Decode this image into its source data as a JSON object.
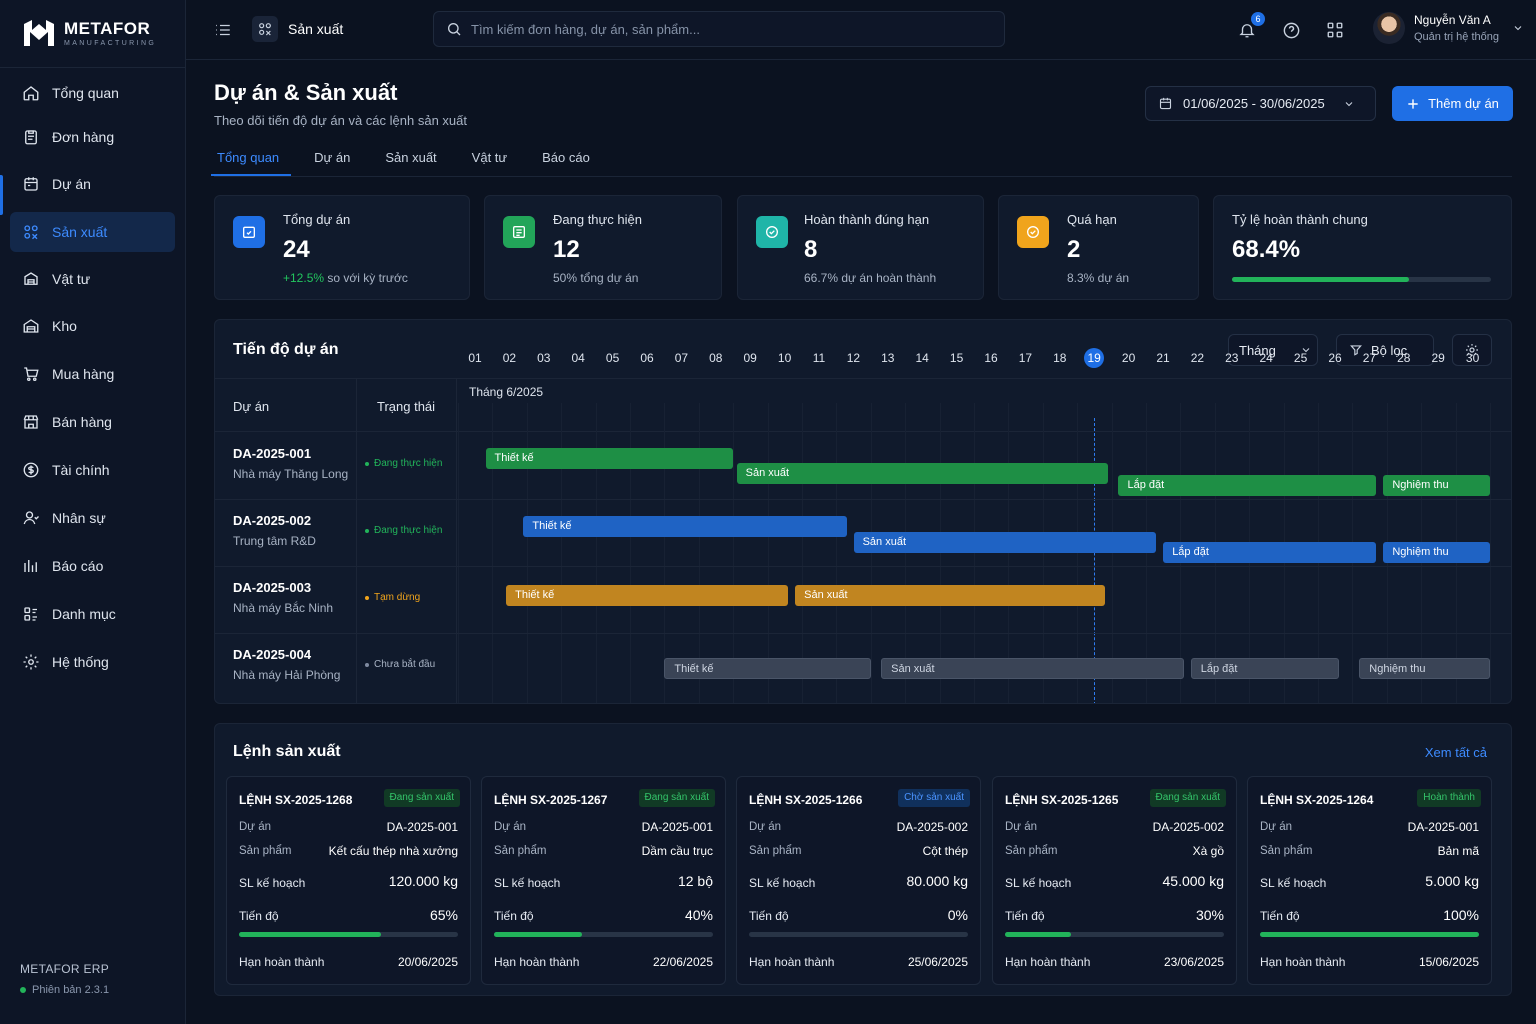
{
  "brand": {
    "name": "METAFOR",
    "tagline": "MANUFACTURING"
  },
  "sidebar": {
    "items": [
      {
        "label": "Tổng quan",
        "icon": "home-icon"
      },
      {
        "label": "Đơn hàng",
        "icon": "clipboard-icon"
      },
      {
        "label": "Dự án",
        "icon": "calendar-icon"
      },
      {
        "label": "Sản xuất",
        "icon": "factory-icon",
        "active": true
      },
      {
        "label": "Vật tư",
        "icon": "box-icon"
      },
      {
        "label": "Kho",
        "icon": "warehouse-icon"
      },
      {
        "label": "Mua hàng",
        "icon": "cart-icon"
      },
      {
        "label": "Bán hàng",
        "icon": "store-icon"
      },
      {
        "label": "Tài chính",
        "icon": "dollar-icon"
      },
      {
        "label": "Nhân sự",
        "icon": "users-icon"
      },
      {
        "label": "Báo cáo",
        "icon": "bar-chart-icon"
      },
      {
        "label": "Danh mục",
        "icon": "grid-icon"
      },
      {
        "label": "Hệ thống",
        "icon": "gear-icon"
      }
    ],
    "footer": {
      "app": "METAFOR ERP",
      "version": "Phiên bản 2.3.1"
    }
  },
  "topbar": {
    "module": "Sản xuất",
    "search_placeholder": "Tìm kiếm đơn hàng, dự án, sản phẩm...",
    "notifications": "6",
    "user": {
      "name": "Nguyễn Văn A",
      "role": "Quản trị hệ thống"
    }
  },
  "header": {
    "title": "Dự án & Sản xuất",
    "subtitle": "Theo dõi tiến độ dự án và các lệnh sản xuất",
    "date_range": "01/06/2025 - 30/06/2025",
    "add_button": "Thêm dự án"
  },
  "tabs": [
    "Tổng quan",
    "Dự án",
    "Sản xuất",
    "Vật tư",
    "Báo cáo"
  ],
  "stats": [
    {
      "label": "Tổng dự án",
      "value": "24",
      "delta": "+12.5%",
      "sub": "so với kỳ trước",
      "color": "#1f6fe5",
      "icon": "folder-check-icon"
    },
    {
      "label": "Đang thực hiện",
      "value": "12",
      "sub": "50% tổng dự án",
      "color": "#22a559",
      "icon": "list-icon"
    },
    {
      "label": "Hoàn thành đúng hạn",
      "value": "8",
      "sub": "66.7% dự án hoàn thành",
      "color": "#1fb5a8",
      "icon": "check-circle-icon"
    },
    {
      "label": "Quá hạn",
      "value": "2",
      "sub": "8.3% dự án",
      "color": "#f0a41c",
      "icon": "alert-circle-icon"
    }
  ],
  "completion": {
    "label": "Tỷ lệ hoàn thành chung",
    "value": "68.4%",
    "fraction": 0.684
  },
  "gantt": {
    "title": "Tiến độ dự án",
    "view": "Tháng",
    "filter": "Bộ lọc",
    "col_project": "Dự án",
    "col_status": "Trạng thái",
    "month": "Tháng 6/2025",
    "days": [
      "01",
      "02",
      "03",
      "04",
      "05",
      "06",
      "07",
      "08",
      "09",
      "10",
      "11",
      "12",
      "13",
      "14",
      "15",
      "16",
      "17",
      "18",
      "19",
      "20",
      "21",
      "22",
      "23",
      "24",
      "25",
      "26",
      "27",
      "28",
      "29",
      "30"
    ],
    "today": "19",
    "projects": [
      {
        "code": "DA-2025-001",
        "name": "Nhà máy Thăng Long",
        "status": "Đang thực hiện",
        "status_color": "#22b35a",
        "phases": [
          {
            "label": "Thiết kế",
            "start": 1.8,
            "end": 9.0,
            "color": "#1e8f45"
          },
          {
            "label": "Sản xuất",
            "start": 9.1,
            "end": 19.9,
            "color": "#1e8f45"
          },
          {
            "label": "Lắp đặt",
            "start": 20.2,
            "end": 27.7,
            "color": "#1e8f45"
          },
          {
            "label": "Nghiệm thu",
            "start": 27.9,
            "end": 31.0,
            "color": "#1e8f45"
          }
        ]
      },
      {
        "code": "DA-2025-002",
        "name": "Trung tâm R&D",
        "status": "Đang thực hiện",
        "status_color": "#22b35a",
        "phases": [
          {
            "label": "Thiết kế",
            "start": 2.9,
            "end": 12.3,
            "color": "#1f63c4"
          },
          {
            "label": "Sản xuất",
            "start": 12.5,
            "end": 21.3,
            "color": "#1f63c4"
          },
          {
            "label": "Lắp đặt",
            "start": 21.5,
            "end": 27.7,
            "color": "#1f63c4"
          },
          {
            "label": "Nghiệm thu",
            "start": 27.9,
            "end": 31.0,
            "color": "#1f63c4"
          }
        ]
      },
      {
        "code": "DA-2025-003",
        "name": "Nhà máy Bắc Ninh",
        "status": "Tạm dừng",
        "status_color": "#f0a41c",
        "phases": [
          {
            "label": "Thiết kế",
            "start": 2.4,
            "end": 10.6,
            "color": "#c18520"
          },
          {
            "label": "Sản xuất",
            "start": 10.8,
            "end": 19.8,
            "color": "#c18520"
          }
        ]
      },
      {
        "code": "DA-2025-004",
        "name": "Nhà máy Hải Phòng",
        "status": "Chưa bắt đầu",
        "status_color": "#7f8aa0",
        "phases": [
          {
            "label": "Thiết kế",
            "start": 7.0,
            "end": 13.0,
            "color": "#3a4456"
          },
          {
            "label": "Sản xuất",
            "start": 13.3,
            "end": 22.1,
            "color": "#3a4456"
          },
          {
            "label": "Lắp đặt",
            "start": 22.3,
            "end": 26.6,
            "color": "#3a4456"
          },
          {
            "label": "Nghiệm thu",
            "start": 27.2,
            "end": 31.0,
            "color": "#3a4456"
          }
        ]
      }
    ]
  },
  "orders": {
    "title": "Lệnh sản xuất",
    "view_all": "Xem tất cả",
    "labels": {
      "project": "Dự án",
      "product": "Sản phẩm",
      "planned": "SL kế hoạch",
      "progress": "Tiến độ",
      "deadline": "Hạn hoàn thành"
    },
    "items": [
      {
        "id": "LỆNH SX-2025-1268",
        "status": "Đang sản xuất",
        "status_type": "green",
        "project": "DA-2025-001",
        "product": "Kết cấu thép nhà xưởng",
        "planned": "120.000 kg",
        "progress": "65%",
        "progress_value": 0.65,
        "deadline": "20/06/2025"
      },
      {
        "id": "LỆNH SX-2025-1267",
        "status": "Đang sản xuất",
        "status_type": "green",
        "project": "DA-2025-001",
        "product": "Dầm cầu trục",
        "planned": "12 bộ",
        "progress": "40%",
        "progress_value": 0.4,
        "deadline": "22/06/2025"
      },
      {
        "id": "LỆNH SX-2025-1266",
        "status": "Chờ sản xuất",
        "status_type": "blue",
        "project": "DA-2025-002",
        "product": "Cột thép",
        "planned": "80.000 kg",
        "progress": "0%",
        "progress_value": 0,
        "deadline": "25/06/2025"
      },
      {
        "id": "LỆNH SX-2025-1265",
        "status": "Đang sản xuất",
        "status_type": "green",
        "project": "DA-2025-002",
        "product": "Xà gồ",
        "planned": "45.000 kg",
        "progress": "30%",
        "progress_value": 0.3,
        "deadline": "23/06/2025"
      },
      {
        "id": "LỆNH SX-2025-1264",
        "status": "Hoàn thành",
        "status_type": "green",
        "project": "DA-2025-001",
        "product": "Bản mã",
        "planned": "5.000 kg",
        "progress": "100%",
        "progress_value": 1.0,
        "deadline": "15/06/2025"
      }
    ]
  }
}
